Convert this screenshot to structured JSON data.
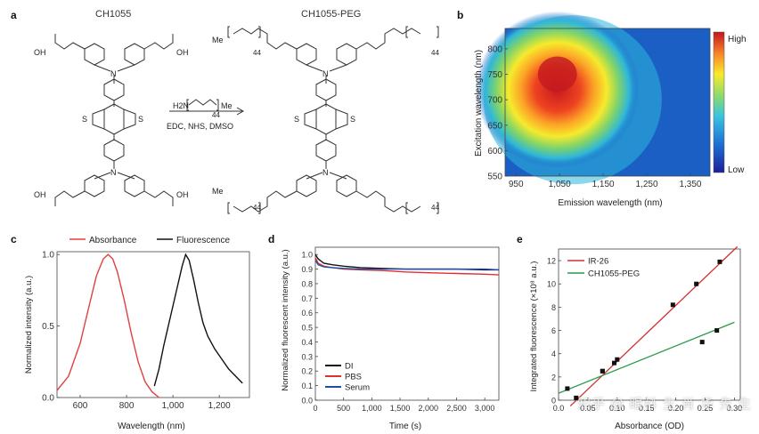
{
  "panel_a": {
    "label": "a",
    "left_title": "CH1055",
    "right_title": "CH1055-PEG",
    "reagent_amine": "H2N",
    "reagent_n": "44",
    "reagent_me": "Me",
    "conditions": "EDC, NHS, DMSO",
    "groups": {
      "cooh": "OH",
      "me": "Me",
      "n44": "44",
      "S": "S",
      "N": "N",
      "O": "O",
      "H": "H"
    }
  },
  "chart_data": [
    {
      "id": "b",
      "type": "heatmap",
      "label": "b",
      "xlabel": "Emission wavelength (nm)",
      "ylabel": "Excitation wavelength (nm)",
      "xticks": [
        "950",
        "1,050",
        "1,150",
        "1,250",
        "1,350"
      ],
      "xtick_values": [
        950,
        1050,
        1150,
        1250,
        1350
      ],
      "yticks": [
        "550",
        "600",
        "650",
        "700",
        "750",
        "800"
      ],
      "ytick_values": [
        550,
        600,
        650,
        700,
        750,
        800
      ],
      "xlim": [
        925,
        1395
      ],
      "ylim": [
        550,
        840
      ],
      "peak": {
        "emission": 1045,
        "excitation": 750
      },
      "colorbar": {
        "high": "High",
        "low": "Low"
      }
    },
    {
      "id": "c",
      "type": "line",
      "label": "c",
      "xlabel": "Wavelength (nm)",
      "ylabel": "Normalized intensity (a.u.)",
      "xticks": [
        "600",
        "800",
        "1,000",
        "1,200"
      ],
      "xtick_values": [
        600,
        800,
        1000,
        1200
      ],
      "yticks": [
        "0.0",
        "0.5",
        "1.0"
      ],
      "ytick_values": [
        0,
        0.5,
        1.0
      ],
      "xlim": [
        500,
        1330
      ],
      "ylim": [
        0,
        1.02
      ],
      "series": [
        {
          "name": "Absorbance",
          "color": "#e04040",
          "x": [
            500,
            550,
            600,
            640,
            670,
            700,
            720,
            740,
            760,
            790,
            820,
            850,
            880,
            910,
            940
          ],
          "y": [
            0.05,
            0.15,
            0.38,
            0.65,
            0.85,
            0.97,
            1.0,
            0.97,
            0.88,
            0.68,
            0.45,
            0.25,
            0.11,
            0.04,
            0.0
          ]
        },
        {
          "name": "Fluorescence",
          "color": "#111111",
          "x": [
            920,
            940,
            960,
            980,
            1000,
            1020,
            1040,
            1055,
            1070,
            1090,
            1110,
            1130,
            1150,
            1180,
            1210,
            1240,
            1270,
            1300
          ],
          "y": [
            0.08,
            0.2,
            0.36,
            0.5,
            0.64,
            0.78,
            0.92,
            1.0,
            0.96,
            0.82,
            0.66,
            0.52,
            0.43,
            0.34,
            0.27,
            0.2,
            0.15,
            0.1
          ]
        }
      ]
    },
    {
      "id": "d",
      "type": "line",
      "label": "d",
      "xlabel": "Time (s)",
      "ylabel": "Normalized fluorescent intensity (a.u.)",
      "xticks": [
        "0",
        "500",
        "1,000",
        "1,500",
        "2,000",
        "2,500",
        "3,000"
      ],
      "xtick_values": [
        0,
        500,
        1000,
        1500,
        2000,
        2500,
        3000
      ],
      "yticks": [
        "0.0",
        "0.1",
        "0.2",
        "0.3",
        "0.4",
        "0.5",
        "0.6",
        "0.7",
        "0.8",
        "0.9",
        "1.0"
      ],
      "ytick_values": [
        0,
        0.1,
        0.2,
        0.3,
        0.4,
        0.5,
        0.6,
        0.7,
        0.8,
        0.9,
        1.0
      ],
      "xlim": [
        0,
        3250
      ],
      "ylim": [
        0,
        1.05
      ],
      "series": [
        {
          "name": "DI",
          "color": "#111111",
          "x": [
            0,
            50,
            150,
            300,
            500,
            800,
            1200,
            1600,
            2000,
            2500,
            3000,
            3250
          ],
          "y": [
            1.0,
            0.97,
            0.94,
            0.93,
            0.92,
            0.91,
            0.905,
            0.9,
            0.9,
            0.9,
            0.895,
            0.895
          ]
        },
        {
          "name": "PBS",
          "color": "#e03030",
          "x": [
            0,
            50,
            150,
            300,
            500,
            800,
            1200,
            1600,
            2000,
            2500,
            3000,
            3250
          ],
          "y": [
            0.98,
            0.94,
            0.92,
            0.91,
            0.9,
            0.895,
            0.89,
            0.88,
            0.875,
            0.87,
            0.865,
            0.86
          ]
        },
        {
          "name": "Serum",
          "color": "#1f4fa8",
          "x": [
            0,
            50,
            150,
            300,
            500,
            800,
            1200,
            1600,
            2000,
            2500,
            3000,
            3250
          ],
          "y": [
            0.96,
            0.93,
            0.915,
            0.91,
            0.905,
            0.9,
            0.9,
            0.9,
            0.9,
            0.9,
            0.9,
            0.895
          ]
        }
      ]
    },
    {
      "id": "e",
      "type": "scatter",
      "label": "e",
      "xlabel": "Absorbance (OD)",
      "ylabel": "Integrated fluorescence (×10⁸ a.u.)",
      "xticks": [
        "0.0",
        "0.05",
        "0.10",
        "0.15",
        "0.20",
        "0.25",
        "0.30"
      ],
      "xtick_values": [
        0,
        0.05,
        0.1,
        0.15,
        0.2,
        0.25,
        0.3
      ],
      "yticks": [
        "0",
        "2",
        "4",
        "6",
        "8",
        "10",
        "12"
      ],
      "ytick_values": [
        0,
        2,
        4,
        6,
        8,
        10,
        12
      ],
      "xlim": [
        0,
        0.31
      ],
      "ylim": [
        0,
        13
      ],
      "series": [
        {
          "name": "IR-26",
          "color": "#d23030",
          "x": [
            0.03,
            0.075,
            0.095,
            0.195,
            0.235,
            0.275
          ],
          "y": [
            0.2,
            2.5,
            3.2,
            8.2,
            10.0,
            11.9
          ],
          "fit": [
            [
              0.02,
              -0.5
            ],
            [
              0.305,
              13.2
            ]
          ]
        },
        {
          "name": "CH1055-PEG",
          "color": "#2a9a4a",
          "x": [
            0.015,
            0.075,
            0.1,
            0.245,
            0.27
          ],
          "y": [
            1.0,
            2.5,
            3.5,
            5.0,
            6.0
          ],
          "fit": [
            [
              0.0,
              0.6
            ],
            [
              0.3,
              6.7
            ]
          ]
        }
      ]
    }
  ],
  "watermark": "知乎 @ 眼科 生 肖 华 先 生"
}
